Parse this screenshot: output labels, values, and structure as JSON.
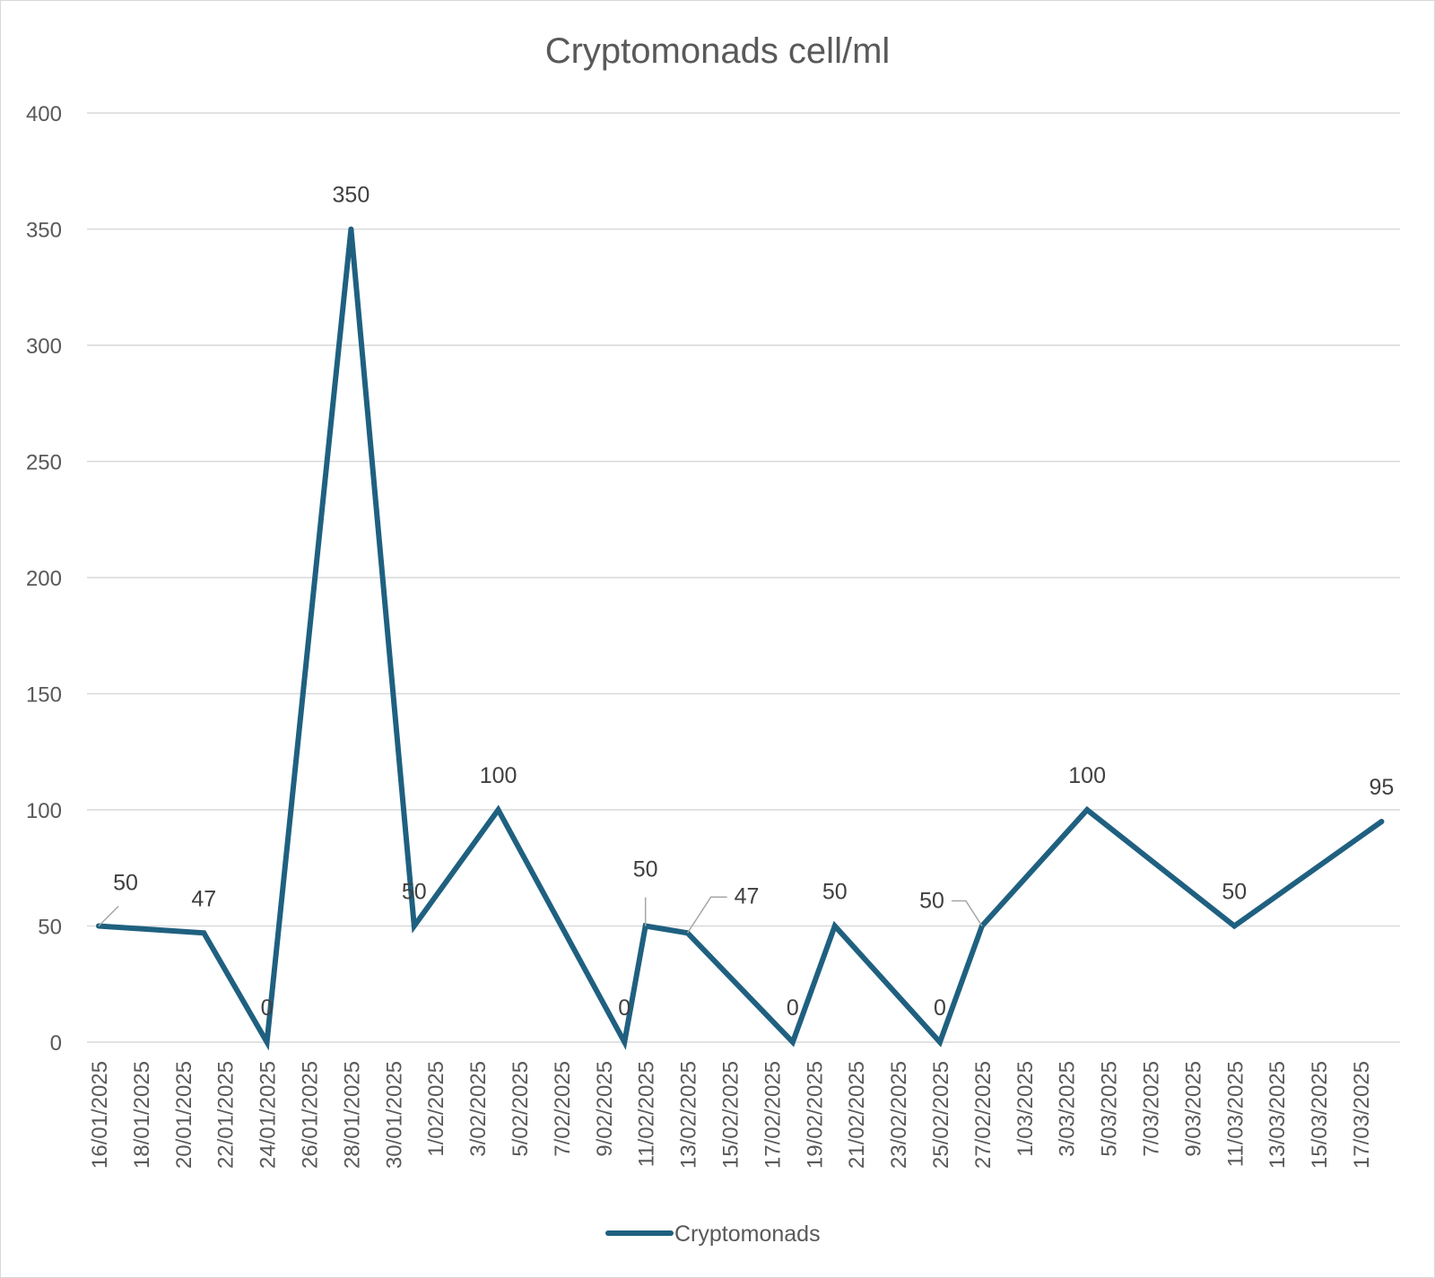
{
  "chart_data": {
    "type": "line",
    "title": "Cryptomonads cell/ml",
    "xlabel": "",
    "ylabel": "",
    "ylim": [
      0,
      400
    ],
    "yticks": [
      0,
      50,
      100,
      150,
      200,
      250,
      300,
      350,
      400
    ],
    "x_axis_type": "date",
    "xlim": [
      "16/01/2025",
      "18/03/2025"
    ],
    "xtick_labels": [
      "16/01/2025",
      "18/01/2025",
      "20/01/2025",
      "22/01/2025",
      "24/01/2025",
      "26/01/2025",
      "28/01/2025",
      "30/01/2025",
      "1/02/2025",
      "3/02/2025",
      "5/02/2025",
      "7/02/2025",
      "9/02/2025",
      "11/02/2025",
      "13/02/2025",
      "15/02/2025",
      "17/02/2025",
      "19/02/2025",
      "21/02/2025",
      "23/02/2025",
      "25/02/2025",
      "27/02/2025",
      "1/03/2025",
      "3/03/2025",
      "5/03/2025",
      "7/03/2025",
      "9/03/2025",
      "11/03/2025",
      "13/03/2025",
      "15/03/2025",
      "17/03/2025"
    ],
    "grid": "horizontal",
    "legend_position": "bottom",
    "series": [
      {
        "name": "Cryptomonads",
        "color": "#1f6080",
        "points": [
          {
            "x": "16/01/2025",
            "y": 50
          },
          {
            "x": "21/01/2025",
            "y": 47
          },
          {
            "x": "24/01/2025",
            "y": 0
          },
          {
            "x": "28/01/2025",
            "y": 350
          },
          {
            "x": "31/01/2025",
            "y": 50
          },
          {
            "x": "4/02/2025",
            "y": 100
          },
          {
            "x": "10/02/2025",
            "y": 0
          },
          {
            "x": "11/02/2025",
            "y": 50
          },
          {
            "x": "13/02/2025",
            "y": 47
          },
          {
            "x": "18/02/2025",
            "y": 0
          },
          {
            "x": "20/02/2025",
            "y": 50
          },
          {
            "x": "25/02/2025",
            "y": 0
          },
          {
            "x": "27/02/2025",
            "y": 50
          },
          {
            "x": "4/03/2025",
            "y": 100
          },
          {
            "x": "11/03/2025",
            "y": 50
          },
          {
            "x": "18/03/2025",
            "y": 95
          }
        ]
      }
    ],
    "data_labels": [
      "50",
      "47",
      "0",
      "350",
      "50",
      "100",
      "0",
      "50",
      "47",
      "0",
      "50",
      "0",
      "50",
      "100",
      "50",
      "95"
    ]
  }
}
